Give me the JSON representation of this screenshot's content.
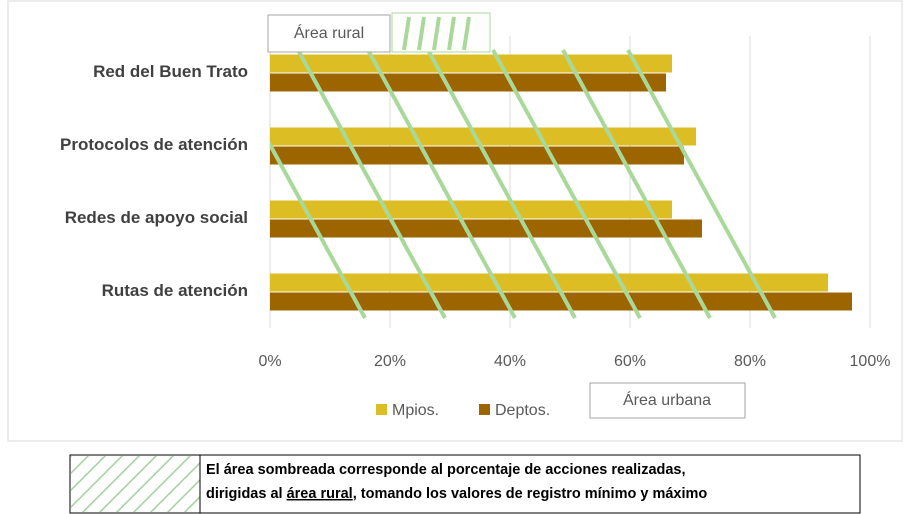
{
  "chart_data": {
    "type": "bar",
    "orientation": "horizontal",
    "categories": [
      "Red del Buen Trato",
      "Protocolos de atención",
      "Redes de apoyo social",
      "Rutas de atención"
    ],
    "series": [
      {
        "name": "Mpios.",
        "color": "#dcbd23",
        "values": [
          67,
          71,
          67,
          93
        ]
      },
      {
        "name": "Deptos.",
        "color": "#9c6500",
        "values": [
          66,
          69,
          72,
          97
        ]
      }
    ],
    "xlim": [
      0,
      100
    ],
    "xticks": [
      {
        "value": 0,
        "label": "0%"
      },
      {
        "value": 20,
        "label": "20%"
      },
      {
        "value": 40,
        "label": "40%"
      },
      {
        "value": 60,
        "label": "60%"
      },
      {
        "value": 80,
        "label": "80%"
      },
      {
        "value": 100,
        "label": "100%"
      }
    ],
    "grid": true,
    "legend": "bottom",
    "annotations": [
      "Área rural",
      "Área urbana"
    ]
  },
  "note": {
    "parts": [
      "El área sombreada corresponde al porcentaje de acciones realizadas,",
      "dirigidas al ",
      "área rural",
      ", tomando los valores de registro mínimo y máximo"
    ]
  }
}
